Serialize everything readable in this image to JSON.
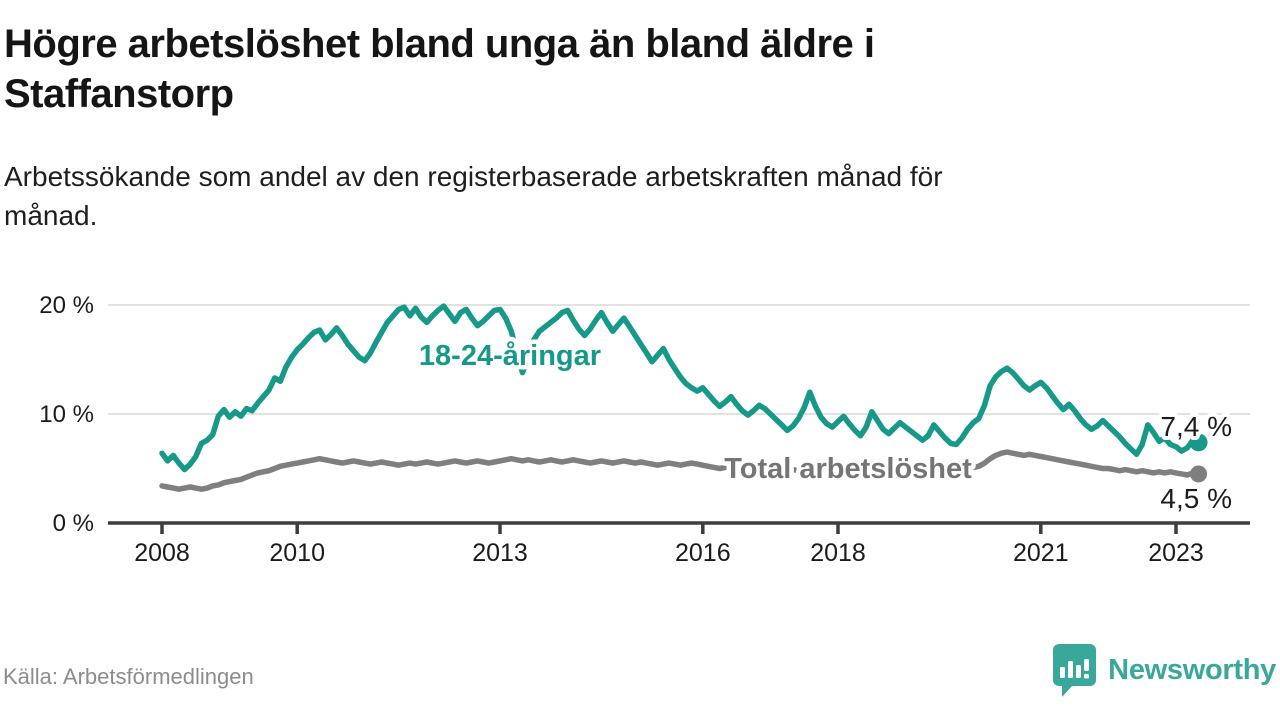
{
  "header": {
    "title_lines": [
      "Högre arbetslöshet bland unga än bland äldre i",
      "Staffanstorp"
    ],
    "subtitle_lines": [
      "Arbetssökande som andel av den registerbaserade arbetskraften månad för",
      "månad."
    ]
  },
  "footer": {
    "source": "Källa: Arbetsförmedlingen",
    "brand": "Newsworthy"
  },
  "colors": {
    "youth_line": "#17998a",
    "total_line": "#7f7f7f",
    "total_label": "#757575",
    "axis": "#3d3d3d",
    "grid": "#d9d9d9",
    "text": "#1b1b1b",
    "value_label": "#1c1c1c",
    "brand_teal": "#3aa79b"
  },
  "chart_data": {
    "type": "line",
    "title": "Högre arbetslöshet bland unga än bland äldre i Staffanstorp",
    "subtitle": "Arbetssökande som andel av den registerbaserade arbetskraften månad för månad.",
    "xlabel": "",
    "ylabel": "",
    "x_start_year": 2008,
    "x_step_months": 1,
    "x_end": "2023-05",
    "x_ticks": [
      2008,
      2010,
      2013,
      2016,
      2018,
      2021,
      2023
    ],
    "ylim": [
      0,
      20
    ],
    "y_ticks": [
      {
        "value": 0,
        "label": "0 %"
      },
      {
        "value": 10,
        "label": "10 %"
      },
      {
        "value": 20,
        "label": "20 %"
      }
    ],
    "grid": "horizontal",
    "legend_position": "inline-labels",
    "series": [
      {
        "name": "Total arbetslöshet",
        "label_text": "Total arbetslöshet",
        "end_label": "4,5 %",
        "end_value": 4.5,
        "values": [
          3.4,
          3.3,
          3.2,
          3.1,
          3.2,
          3.3,
          3.2,
          3.1,
          3.2,
          3.4,
          3.5,
          3.7,
          3.8,
          3.9,
          4.0,
          4.2,
          4.4,
          4.6,
          4.7,
          4.8,
          5.0,
          5.2,
          5.3,
          5.4,
          5.5,
          5.6,
          5.7,
          5.8,
          5.9,
          5.8,
          5.7,
          5.6,
          5.5,
          5.6,
          5.7,
          5.6,
          5.5,
          5.4,
          5.5,
          5.6,
          5.5,
          5.4,
          5.3,
          5.4,
          5.5,
          5.4,
          5.5,
          5.6,
          5.5,
          5.4,
          5.5,
          5.6,
          5.7,
          5.6,
          5.5,
          5.6,
          5.7,
          5.6,
          5.5,
          5.6,
          5.7,
          5.8,
          5.9,
          5.8,
          5.7,
          5.8,
          5.7,
          5.6,
          5.7,
          5.8,
          5.7,
          5.6,
          5.7,
          5.8,
          5.7,
          5.6,
          5.5,
          5.6,
          5.7,
          5.6,
          5.5,
          5.6,
          5.7,
          5.6,
          5.5,
          5.6,
          5.5,
          5.4,
          5.3,
          5.4,
          5.5,
          5.4,
          5.3,
          5.4,
          5.5,
          5.4,
          5.3,
          5.2,
          5.1,
          5.0,
          5.1,
          5.2,
          5.1,
          5.0,
          4.9,
          5.0,
          5.1,
          5.0,
          4.9,
          4.8,
          4.9,
          5.0,
          4.9,
          4.8,
          4.9,
          5.0,
          4.9,
          4.8,
          4.9,
          5.0,
          4.9,
          4.8,
          4.7,
          4.8,
          4.9,
          4.8,
          4.7,
          4.6,
          4.7,
          4.8,
          4.7,
          4.8,
          4.7,
          4.6,
          4.5,
          4.6,
          4.7,
          4.6,
          4.5,
          4.6,
          4.7,
          4.8,
          4.9,
          5.0,
          5.1,
          5.2,
          5.5,
          5.9,
          6.2,
          6.4,
          6.5,
          6.4,
          6.3,
          6.2,
          6.3,
          6.2,
          6.1,
          6.0,
          5.9,
          5.8,
          5.7,
          5.6,
          5.5,
          5.4,
          5.3,
          5.2,
          5.1,
          5.0,
          5.0,
          4.9,
          4.8,
          4.9,
          4.8,
          4.7,
          4.8,
          4.7,
          4.6,
          4.7,
          4.6,
          4.7,
          4.6,
          4.5,
          4.4,
          4.6,
          4.5
        ]
      },
      {
        "name": "18-24-åringar",
        "label_text": "18-24-åringar",
        "end_label": "7,4 %",
        "end_value": 7.4,
        "values": [
          6.4,
          5.7,
          6.2,
          5.5,
          4.9,
          5.4,
          6.1,
          7.3,
          7.6,
          8.1,
          9.8,
          10.4,
          9.7,
          10.2,
          9.8,
          10.5,
          10.3,
          11.0,
          11.6,
          12.2,
          13.3,
          13.0,
          14.3,
          15.2,
          15.9,
          16.4,
          17.0,
          17.5,
          17.7,
          16.8,
          17.3,
          17.9,
          17.2,
          16.4,
          15.8,
          15.2,
          14.9,
          15.6,
          16.6,
          17.5,
          18.4,
          19.0,
          19.6,
          19.8,
          19.0,
          19.7,
          18.9,
          18.4,
          19.0,
          19.5,
          19.9,
          19.2,
          18.5,
          19.3,
          19.6,
          18.8,
          18.1,
          18.5,
          19.0,
          19.5,
          19.6,
          18.8,
          17.6,
          15.5,
          13.8,
          15.2,
          16.8,
          17.6,
          18.0,
          18.4,
          18.8,
          19.3,
          19.5,
          18.6,
          17.8,
          17.2,
          17.8,
          18.6,
          19.3,
          18.4,
          17.6,
          18.2,
          18.8,
          18.0,
          17.2,
          16.4,
          15.6,
          14.8,
          15.4,
          16.0,
          15.0,
          14.2,
          13.4,
          12.8,
          12.4,
          12.1,
          12.4,
          11.8,
          11.2,
          10.7,
          11.1,
          11.6,
          10.9,
          10.3,
          9.9,
          10.3,
          10.8,
          10.5,
          10.0,
          9.5,
          9.0,
          8.5,
          8.9,
          9.6,
          10.6,
          12.0,
          10.7,
          9.7,
          9.1,
          8.8,
          9.3,
          9.8,
          9.1,
          8.5,
          8.0,
          8.8,
          10.2,
          9.4,
          8.6,
          8.2,
          8.7,
          9.2,
          8.8,
          8.4,
          8.0,
          7.6,
          8.0,
          9.0,
          8.4,
          7.8,
          7.3,
          7.2,
          7.8,
          8.6,
          9.2,
          9.6,
          10.8,
          12.6,
          13.4,
          13.9,
          14.2,
          13.8,
          13.2,
          12.6,
          12.2,
          12.6,
          12.9,
          12.4,
          11.7,
          11.0,
          10.4,
          10.9,
          10.3,
          9.6,
          9.0,
          8.6,
          8.9,
          9.4,
          8.9,
          8.4,
          7.9,
          7.3,
          6.8,
          6.3,
          7.2,
          9.0,
          8.3,
          7.5,
          7.8,
          7.2,
          7.0,
          6.6,
          6.9,
          7.6,
          7.4
        ]
      }
    ]
  }
}
